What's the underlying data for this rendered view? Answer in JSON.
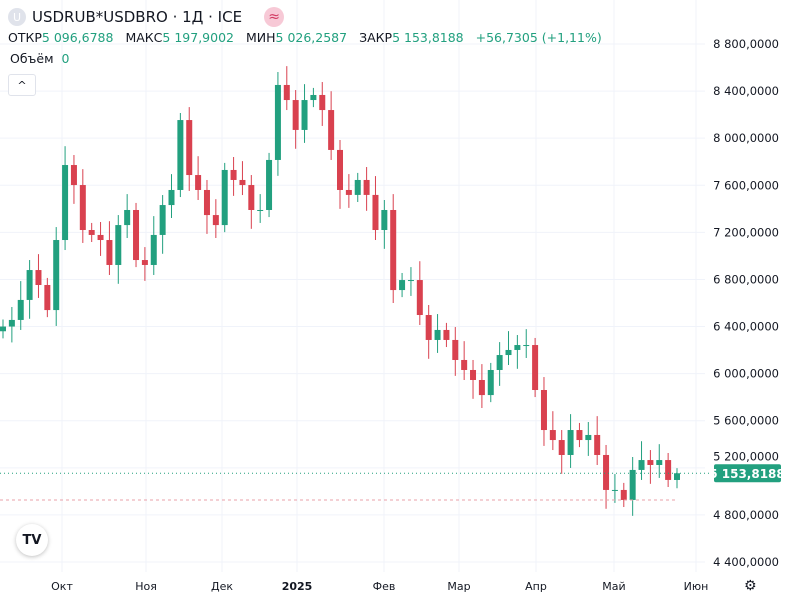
{
  "header": {
    "symbol": "USDRUB*USDBRO · 1Д · ICE",
    "symbol_icon": "U",
    "indicator_icon": "≈"
  },
  "ohlc": {
    "open_label": "ОТКР",
    "open": "5 096,6788",
    "high_label": "МАКС",
    "high": "5 197,9002",
    "low_label": "МИН",
    "low": "5 026,2587",
    "close_label": "ЗАКР",
    "close": "5 153,8188",
    "change": "+56,7305 (+1,11%)"
  },
  "volume": {
    "label": "Объём",
    "value": "0"
  },
  "chart_data": {
    "type": "candlestick",
    "ylim": [
      4400,
      8800
    ],
    "y_ticks": [
      "8 800,0000",
      "8 400,0000",
      "8 000,0000",
      "7 600,0000",
      "7 200,0000",
      "6 800,0000",
      "6 400,0000",
      "6 000,0000",
      "5 600,0000",
      "5 200,0000",
      "4 800,0000",
      "4 400,0000"
    ],
    "x_ticks": [
      "Окт",
      "Ноя",
      "Дек",
      "2025",
      "Фев",
      "Мар",
      "Апр",
      "Май",
      "Июн"
    ],
    "closes": [
      6400,
      6456,
      6626,
      6880,
      6753,
      6540,
      7135,
      7772,
      7602,
      7220,
      7178,
      7135,
      6923,
      7262,
      7390,
      6965,
      6923,
      7178,
      7432,
      7560,
      8154,
      7687,
      7560,
      7347,
      7262,
      7730,
      7645,
      7602,
      7390,
      7390,
      7815,
      8452,
      8324,
      8070,
      8324,
      8367,
      8239,
      7900,
      7560,
      7518,
      7645,
      7518,
      7220,
      7390,
      6710,
      6795,
      6795,
      6498,
      6286,
      6371,
      6286,
      6116,
      6031,
      5946,
      5818,
      6031,
      6158,
      6201,
      6243,
      6243,
      5861,
      5521,
      5436,
      5309,
      5521,
      5436,
      5479,
      5309,
      5012,
      5012,
      4927,
      5182,
      5266,
      5224,
      5266,
      5097,
      5153.8188
    ],
    "last_price": "5 153,8188",
    "colors": {
      "up": "#22a07f",
      "down": "#d9414f",
      "grid": "#f0f3fa"
    }
  },
  "ui": {
    "collapse_icon": "^",
    "logo": "TV",
    "settings_icon": "⚙"
  }
}
